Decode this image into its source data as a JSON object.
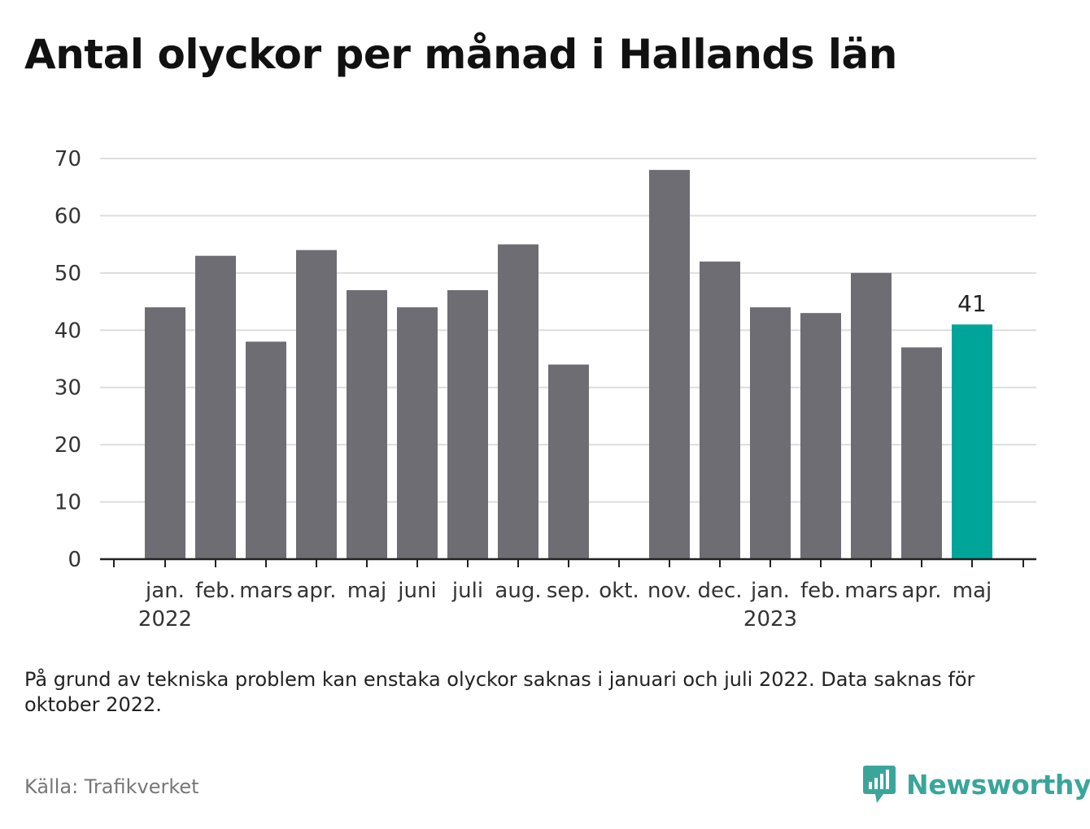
{
  "title": "Antal olyckor per månad i Hallands län",
  "note": "På grund av tekniska problem kan enstaka olyckor saknas i januari och juli 2022. Data saknas för oktober 2022.",
  "source": "Källa: Trafikverket",
  "brand": {
    "name": "Newsworthy",
    "icon": "newsworthy-logo-icon",
    "color": "#3aa69b"
  },
  "chart_data": {
    "type": "bar",
    "title": "Antal olyckor per månad i Hallands län",
    "categories": [
      "jan.",
      "feb.",
      "mars",
      "apr.",
      "maj",
      "juni",
      "juli",
      "aug.",
      "sep.",
      "okt.",
      "nov.",
      "dec.",
      "jan.",
      "feb.",
      "mars",
      "apr.",
      "maj"
    ],
    "year_labels": [
      {
        "index": 0,
        "label": "2022"
      },
      {
        "index": 12,
        "label": "2023"
      }
    ],
    "values": [
      44,
      53,
      38,
      54,
      47,
      44,
      47,
      55,
      34,
      null,
      68,
      52,
      44,
      43,
      50,
      37,
      41
    ],
    "highlight_index": 16,
    "highlight_label": "41",
    "ylim": [
      0,
      70
    ],
    "yticks": [
      0,
      10,
      20,
      30,
      40,
      50,
      60,
      70
    ],
    "grid": true,
    "colors": {
      "bar": "#6e6d73",
      "highlight": "#00a59a",
      "grid": "#dddddd",
      "axis": "#222222"
    }
  }
}
